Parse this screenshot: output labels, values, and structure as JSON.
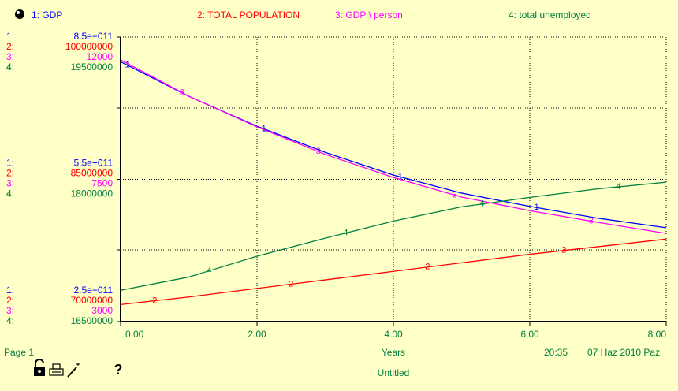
{
  "chart_data": {
    "type": "line",
    "x": [
      0,
      1,
      2,
      3,
      4,
      5,
      6,
      7,
      8
    ],
    "xlim": [
      0,
      8
    ],
    "xticks": [
      {
        "value": 0,
        "label": "0.00"
      },
      {
        "value": 2,
        "label": "2.00"
      },
      {
        "value": 4,
        "label": "4.00"
      },
      {
        "value": 6,
        "label": "6.00"
      },
      {
        "value": 8,
        "label": "8.00"
      }
    ],
    "x_label": "Years",
    "grid": true,
    "series": [
      {
        "name": "1: GDP",
        "marker": "1",
        "axis_prefix": "1:",
        "color": "#0000ff",
        "ylim": [
          250000000000,
          850000000000
        ],
        "yticks": [
          {
            "value": 250000000000,
            "label": "2.5e+011"
          },
          {
            "value": 550000000000,
            "label": "5.5e+011"
          },
          {
            "value": 850000000000,
            "label": "8.5e+011"
          }
        ],
        "values": [
          798000000000,
          725000000000,
          662000000000,
          607000000000,
          559000000000,
          521000000000,
          493000000000,
          468000000000,
          448000000000
        ]
      },
      {
        "name": "2: TOTAL POPULATION",
        "marker": "2",
        "axis_prefix": "2:",
        "color": "#ff0000",
        "ylim": [
          70000000,
          100000000
        ],
        "yticks": [
          70000000,
          85000000,
          100000000
        ],
        "values": [
          71800000,
          72600000,
          73500000,
          74400000,
          75300000,
          76200000,
          77100000,
          77900000,
          78700000
        ]
      },
      {
        "name": "3: GDP \\ person",
        "marker": "3",
        "axis_prefix": "3:",
        "color": "#ff00ff",
        "ylim": [
          3000,
          12000
        ],
        "yticks": [
          3000,
          7500,
          12000
        ],
        "values": [
          11280,
          10130,
          9160,
          8290,
          7560,
          6940,
          6510,
          6140,
          5790
        ]
      },
      {
        "name": "4: total unemployed",
        "marker": "4",
        "axis_prefix": "4:",
        "color": "#008040",
        "ylim": [
          16500000,
          19500000
        ],
        "yticks": [
          16500000,
          18000000,
          19500000
        ],
        "values": [
          16830000,
          16970000,
          17190000,
          17380000,
          17560000,
          17710000,
          17810000,
          17900000,
          17970000
        ]
      }
    ]
  },
  "footer": {
    "page": "Page 1",
    "time": "20:35",
    "date": "07 Haz 2010 Paz",
    "file": "Untitled",
    "help_icon": "?"
  }
}
